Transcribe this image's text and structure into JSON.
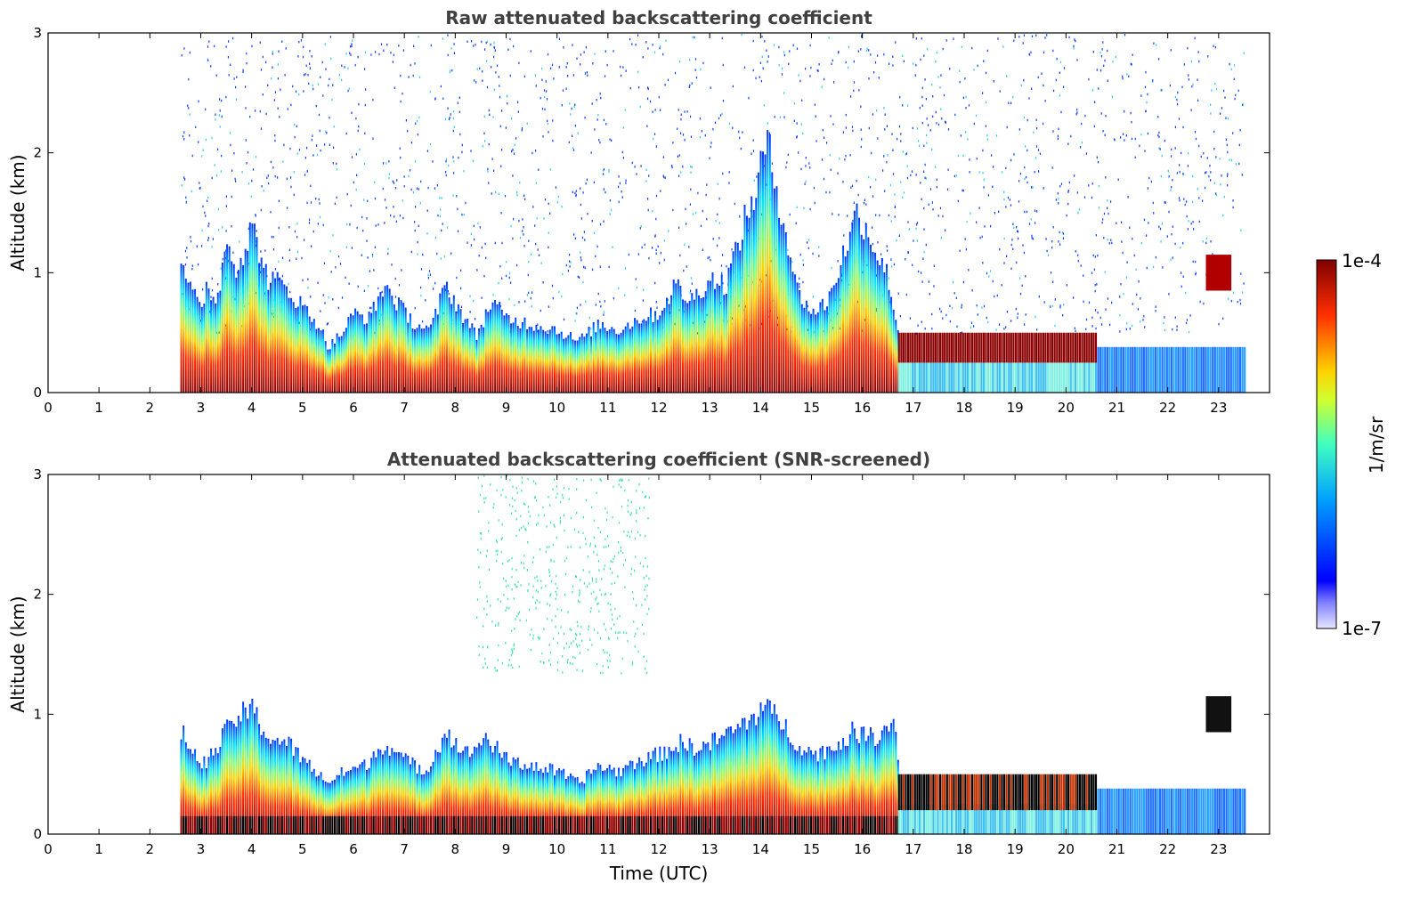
{
  "chart_data": [
    {
      "type": "heatmap",
      "title": "Raw attenuated backscattering coefficient",
      "ylabel": "Altitude (km)",
      "xlabel": "",
      "xlim": [
        0,
        24
      ],
      "ylim": [
        0,
        3
      ],
      "xticks": [
        "0",
        "1",
        "2",
        "3",
        "4",
        "5",
        "6",
        "7",
        "8",
        "9",
        "10",
        "11",
        "12",
        "13",
        "14",
        "15",
        "16",
        "17",
        "18",
        "19",
        "20",
        "21",
        "22",
        "23"
      ],
      "yticks": [
        "0",
        "1",
        "2",
        "3"
      ],
      "data_start_hour": 2.6,
      "data_end_hour": 23.5,
      "aerosol_layer_top_km": [
        [
          2.6,
          1.2
        ],
        [
          2.8,
          0.9
        ],
        [
          3.0,
          0.7
        ],
        [
          3.1,
          0.95
        ],
        [
          3.3,
          0.8
        ],
        [
          3.5,
          1.35
        ],
        [
          3.7,
          1.1
        ],
        [
          4.0,
          1.45
        ],
        [
          4.3,
          1.0
        ],
        [
          4.6,
          0.95
        ],
        [
          5.0,
          0.75
        ],
        [
          5.3,
          0.6
        ],
        [
          5.5,
          0.4
        ],
        [
          5.8,
          0.55
        ],
        [
          6.0,
          0.7
        ],
        [
          6.3,
          0.65
        ],
        [
          6.6,
          0.95
        ],
        [
          6.9,
          0.75
        ],
        [
          7.2,
          0.6
        ],
        [
          7.5,
          0.55
        ],
        [
          7.8,
          0.95
        ],
        [
          8.1,
          0.7
        ],
        [
          8.4,
          0.5
        ],
        [
          8.7,
          0.8
        ],
        [
          9.0,
          0.65
        ],
        [
          9.5,
          0.6
        ],
        [
          10.0,
          0.55
        ],
        [
          10.4,
          0.45
        ],
        [
          10.8,
          0.6
        ],
        [
          11.2,
          0.55
        ],
        [
          11.6,
          0.65
        ],
        [
          12.0,
          0.7
        ],
        [
          12.3,
          0.95
        ],
        [
          12.6,
          0.8
        ],
        [
          13.0,
          1.0
        ],
        [
          13.3,
          0.95
        ],
        [
          13.6,
          1.4
        ],
        [
          13.9,
          1.8
        ],
        [
          14.1,
          2.2
        ],
        [
          14.4,
          1.6
        ],
        [
          14.7,
          0.9
        ],
        [
          15.0,
          0.7
        ],
        [
          15.3,
          0.8
        ],
        [
          15.6,
          1.2
        ],
        [
          15.9,
          1.6
        ],
        [
          16.2,
          1.3
        ],
        [
          16.5,
          1.0
        ],
        [
          16.7,
          0.5
        ]
      ],
      "cloud_layer": {
        "start_hour": 16.7,
        "end_hour": 20.6,
        "base_km": 0.25,
        "top_km": 0.5
      },
      "colorbar": {
        "min_label": "1e-7",
        "max_label": "1e-4",
        "unit": "1/m/sr",
        "scale": "log"
      }
    },
    {
      "type": "heatmap",
      "title": "Attenuated backscattering coefficient (SNR-screened)",
      "ylabel": "Altitude (km)",
      "xlabel": "Time (UTC)",
      "xlim": [
        0,
        24
      ],
      "ylim": [
        0,
        3
      ],
      "xticks": [
        "0",
        "1",
        "2",
        "3",
        "4",
        "5",
        "6",
        "7",
        "8",
        "9",
        "10",
        "11",
        "12",
        "13",
        "14",
        "15",
        "16",
        "17",
        "18",
        "19",
        "20",
        "21",
        "22",
        "23"
      ],
      "yticks": [
        "0",
        "1",
        "2",
        "3"
      ],
      "data_start_hour": 2.6,
      "data_end_hour": 23.5,
      "aerosol_layer_top_km": [
        [
          2.6,
          0.9
        ],
        [
          3.0,
          0.6
        ],
        [
          3.3,
          0.75
        ],
        [
          3.6,
          1.0
        ],
        [
          4.0,
          1.1
        ],
        [
          4.3,
          0.85
        ],
        [
          4.7,
          0.8
        ],
        [
          5.0,
          0.65
        ],
        [
          5.5,
          0.45
        ],
        [
          5.8,
          0.55
        ],
        [
          6.2,
          0.6
        ],
        [
          6.6,
          0.8
        ],
        [
          7.0,
          0.65
        ],
        [
          7.4,
          0.55
        ],
        [
          7.8,
          0.9
        ],
        [
          8.2,
          0.7
        ],
        [
          8.6,
          0.85
        ],
        [
          9.0,
          0.65
        ],
        [
          9.5,
          0.6
        ],
        [
          10.0,
          0.55
        ],
        [
          10.4,
          0.45
        ],
        [
          10.8,
          0.6
        ],
        [
          11.2,
          0.55
        ],
        [
          11.6,
          0.65
        ],
        [
          12.0,
          0.7
        ],
        [
          12.4,
          0.8
        ],
        [
          12.8,
          0.75
        ],
        [
          13.2,
          0.85
        ],
        [
          13.6,
          0.95
        ],
        [
          14.0,
          1.1
        ],
        [
          14.3,
          1.05
        ],
        [
          14.7,
          0.8
        ],
        [
          15.0,
          0.7
        ],
        [
          15.4,
          0.75
        ],
        [
          15.8,
          0.9
        ],
        [
          16.2,
          0.85
        ],
        [
          16.6,
          1.0
        ],
        [
          16.75,
          0.5
        ]
      ],
      "cloud_layer": {
        "start_hour": 16.7,
        "end_hour": 20.6,
        "base_km": 0.2,
        "top_km": 0.5
      },
      "colorbar": {
        "min_label": "1e-7",
        "max_label": "1e-4",
        "unit": "1/m/sr",
        "scale": "log"
      }
    }
  ]
}
